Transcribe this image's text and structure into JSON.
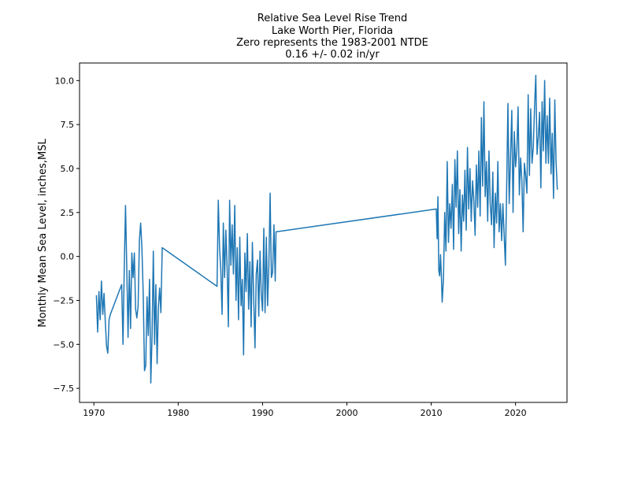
{
  "chart_data": {
    "type": "line",
    "title_lines": [
      "Relative Sea Level Rise Trend",
      "Lake Worth Pier, Florida",
      "Zero represents the 1983-2001 NTDE",
      "0.16 +/- 0.02 in/yr"
    ],
    "xlabel": "",
    "ylabel": "Monthly Mean Sea Level, inches,MSL",
    "xlim": [
      1968.3,
      2026.1
    ],
    "ylim": [
      -8.3,
      11.0
    ],
    "xticks": [
      1970,
      1980,
      1990,
      2000,
      2010,
      2020
    ],
    "yticks": [
      -7.5,
      -5.0,
      -2.5,
      0.0,
      2.5,
      5.0,
      7.5,
      10.0
    ],
    "ytick_labels": [
      "−7.5",
      "−5.0",
      "−2.5",
      "0.0",
      "2.5",
      "5.0",
      "7.5",
      "10.0"
    ],
    "grid": false,
    "series": [
      {
        "color": "#1f77b4",
        "points": [
          [
            1970.3,
            -2.2
          ],
          [
            1970.45,
            -4.3
          ],
          [
            1970.6,
            -2.0
          ],
          [
            1970.75,
            -3.6
          ],
          [
            1970.9,
            -1.4
          ],
          [
            1971.05,
            -3.3
          ],
          [
            1971.2,
            -2.1
          ],
          [
            1971.35,
            -3.7
          ],
          [
            1971.5,
            -5.1
          ],
          [
            1971.65,
            -5.5
          ],
          [
            1971.8,
            -3.6
          ],
          [
            1971.95,
            -3.3
          ],
          [
            1973.3,
            -1.6
          ],
          [
            1973.45,
            -5.0
          ],
          [
            1973.6,
            -0.6
          ],
          [
            1973.75,
            2.9
          ],
          [
            1973.9,
            -0.7
          ],
          [
            1974.05,
            -4.6
          ],
          [
            1974.2,
            -0.8
          ],
          [
            1974.35,
            -4.1
          ],
          [
            1974.5,
            0.2
          ],
          [
            1974.65,
            -1.2
          ],
          [
            1974.8,
            0.2
          ],
          [
            1974.95,
            -3.0
          ],
          [
            1975.1,
            -3.5
          ],
          [
            1975.25,
            -2.8
          ],
          [
            1975.4,
            0.9
          ],
          [
            1975.55,
            1.9
          ],
          [
            1975.7,
            0.5
          ],
          [
            1975.85,
            -2.2
          ],
          [
            1976.0,
            -6.5
          ],
          [
            1976.15,
            -6.2
          ],
          [
            1976.3,
            -2.3
          ],
          [
            1976.45,
            -4.5
          ],
          [
            1976.6,
            -1.3
          ],
          [
            1976.75,
            -7.2
          ],
          [
            1976.9,
            -4.5
          ],
          [
            1977.05,
            0.3
          ],
          [
            1977.2,
            -5.0
          ],
          [
            1977.35,
            -1.6
          ],
          [
            1977.5,
            -6.1
          ],
          [
            1977.65,
            -2.9
          ],
          [
            1977.8,
            -1.8
          ],
          [
            1977.95,
            -3.2
          ],
          [
            1978.1,
            0.5
          ],
          [
            1984.6,
            -1.7
          ],
          [
            1984.75,
            3.2
          ],
          [
            1984.9,
            0.5
          ],
          [
            1985.05,
            -0.8
          ],
          [
            1985.2,
            -3.3
          ],
          [
            1985.35,
            1.9
          ],
          [
            1985.5,
            -1.2
          ],
          [
            1985.65,
            1.5
          ],
          [
            1985.8,
            -0.6
          ],
          [
            1985.95,
            -4.0
          ],
          [
            1986.1,
            3.2
          ],
          [
            1986.25,
            -0.5
          ],
          [
            1986.4,
            1.8
          ],
          [
            1986.55,
            -1.0
          ],
          [
            1986.7,
            2.9
          ],
          [
            1986.85,
            -2.5
          ],
          [
            1987.0,
            0.5
          ],
          [
            1987.15,
            -3.6
          ],
          [
            1987.3,
            1.1
          ],
          [
            1987.45,
            -2.8
          ],
          [
            1987.6,
            -1.3
          ],
          [
            1987.75,
            -5.6
          ],
          [
            1987.9,
            0.2
          ],
          [
            1988.05,
            -2.0
          ],
          [
            1988.2,
            1.3
          ],
          [
            1988.35,
            -3.0
          ],
          [
            1988.5,
            -0.3
          ],
          [
            1988.65,
            -4.0
          ],
          [
            1988.8,
            0.8
          ],
          [
            1988.95,
            -2.3
          ],
          [
            1989.1,
            -5.2
          ],
          [
            1989.25,
            -1.0
          ],
          [
            1989.4,
            -0.2
          ],
          [
            1989.55,
            -3.4
          ],
          [
            1989.7,
            0.3
          ],
          [
            1989.85,
            -2.2
          ],
          [
            1990.0,
            -3.1
          ],
          [
            1990.15,
            1.6
          ],
          [
            1990.3,
            -3.2
          ],
          [
            1990.45,
            1.1
          ],
          [
            1990.6,
            -2.8
          ],
          [
            1990.75,
            -0.5
          ],
          [
            1990.9,
            3.6
          ],
          [
            1991.05,
            -1.2
          ],
          [
            1991.2,
            -0.9
          ],
          [
            1991.35,
            1.8
          ],
          [
            1991.5,
            -1.4
          ],
          [
            1991.6,
            1.4
          ],
          [
            2010.6,
            2.7
          ],
          [
            2010.7,
            1.0
          ],
          [
            2010.8,
            3.4
          ],
          [
            2010.9,
            -0.8
          ],
          [
            2011.0,
            -1.1
          ],
          [
            2011.1,
            0.1
          ],
          [
            2011.2,
            -1.0
          ],
          [
            2011.3,
            -2.6
          ],
          [
            2011.45,
            -1.3
          ],
          [
            2011.6,
            2.5
          ],
          [
            2011.75,
            0.3
          ],
          [
            2011.9,
            5.4
          ],
          [
            2012.05,
            0.8
          ],
          [
            2012.2,
            3.0
          ],
          [
            2012.35,
            1.6
          ],
          [
            2012.5,
            4.1
          ],
          [
            2012.65,
            0.4
          ],
          [
            2012.8,
            5.5
          ],
          [
            2012.95,
            2.8
          ],
          [
            2013.1,
            6.0
          ],
          [
            2013.25,
            1.3
          ],
          [
            2013.4,
            3.8
          ],
          [
            2013.55,
            0.3
          ],
          [
            2013.7,
            3.5
          ],
          [
            2013.85,
            2.0
          ],
          [
            2014.0,
            4.9
          ],
          [
            2014.15,
            1.5
          ],
          [
            2014.3,
            6.2
          ],
          [
            2014.45,
            2.7
          ],
          [
            2014.6,
            5.0
          ],
          [
            2014.75,
            2.0
          ],
          [
            2014.9,
            4.3
          ],
          [
            2015.05,
            3.2
          ],
          [
            2015.2,
            1.2
          ],
          [
            2015.35,
            5.2
          ],
          [
            2015.5,
            2.8
          ],
          [
            2015.65,
            6.0
          ],
          [
            2015.8,
            2.3
          ],
          [
            2015.95,
            7.9
          ],
          [
            2016.1,
            4.0
          ],
          [
            2016.25,
            8.8
          ],
          [
            2016.4,
            3.4
          ],
          [
            2016.55,
            5.4
          ],
          [
            2016.7,
            2.0
          ],
          [
            2016.85,
            6.0
          ],
          [
            2017.0,
            3.0
          ],
          [
            2017.15,
            1.8
          ],
          [
            2017.3,
            4.8
          ],
          [
            2017.45,
            0.5
          ],
          [
            2017.6,
            3.6
          ],
          [
            2017.75,
            1.9
          ],
          [
            2017.9,
            5.4
          ],
          [
            2018.05,
            1.4
          ],
          [
            2018.2,
            3.0
          ],
          [
            2018.35,
            0.9
          ],
          [
            2018.5,
            3.0
          ],
          [
            2018.65,
            1.2
          ],
          [
            2018.8,
            -0.5
          ],
          [
            2018.95,
            4.0
          ],
          [
            2019.1,
            8.7
          ],
          [
            2019.25,
            3.0
          ],
          [
            2019.4,
            5.5
          ],
          [
            2019.55,
            8.3
          ],
          [
            2019.7,
            2.5
          ],
          [
            2019.85,
            7.1
          ],
          [
            2020.0,
            5.1
          ],
          [
            2020.15,
            6.0
          ],
          [
            2020.3,
            8.5
          ],
          [
            2020.45,
            3.5
          ],
          [
            2020.6,
            5.6
          ],
          [
            2020.75,
            4.3
          ],
          [
            2020.9,
            1.4
          ],
          [
            2021.05,
            5.3
          ],
          [
            2021.2,
            4.6
          ],
          [
            2021.35,
            3.6
          ],
          [
            2021.5,
            9.2
          ],
          [
            2021.65,
            4.6
          ],
          [
            2021.8,
            8.4
          ],
          [
            2021.95,
            5.3
          ],
          [
            2022.1,
            6.2
          ],
          [
            2022.25,
            8.5
          ],
          [
            2022.4,
            10.3
          ],
          [
            2022.55,
            5.8
          ],
          [
            2022.7,
            6.8
          ],
          [
            2022.85,
            8.2
          ],
          [
            2023.0,
            3.9
          ],
          [
            2023.15,
            8.8
          ],
          [
            2023.3,
            6.0
          ],
          [
            2023.45,
            10.0
          ],
          [
            2023.6,
            5.3
          ],
          [
            2023.75,
            8.0
          ],
          [
            2023.9,
            5.3
          ],
          [
            2024.05,
            9.0
          ],
          [
            2024.2,
            4.7
          ],
          [
            2024.35,
            7.0
          ],
          [
            2024.5,
            3.3
          ],
          [
            2024.65,
            8.9
          ],
          [
            2024.8,
            5.4
          ],
          [
            2024.95,
            3.8
          ]
        ]
      }
    ]
  }
}
